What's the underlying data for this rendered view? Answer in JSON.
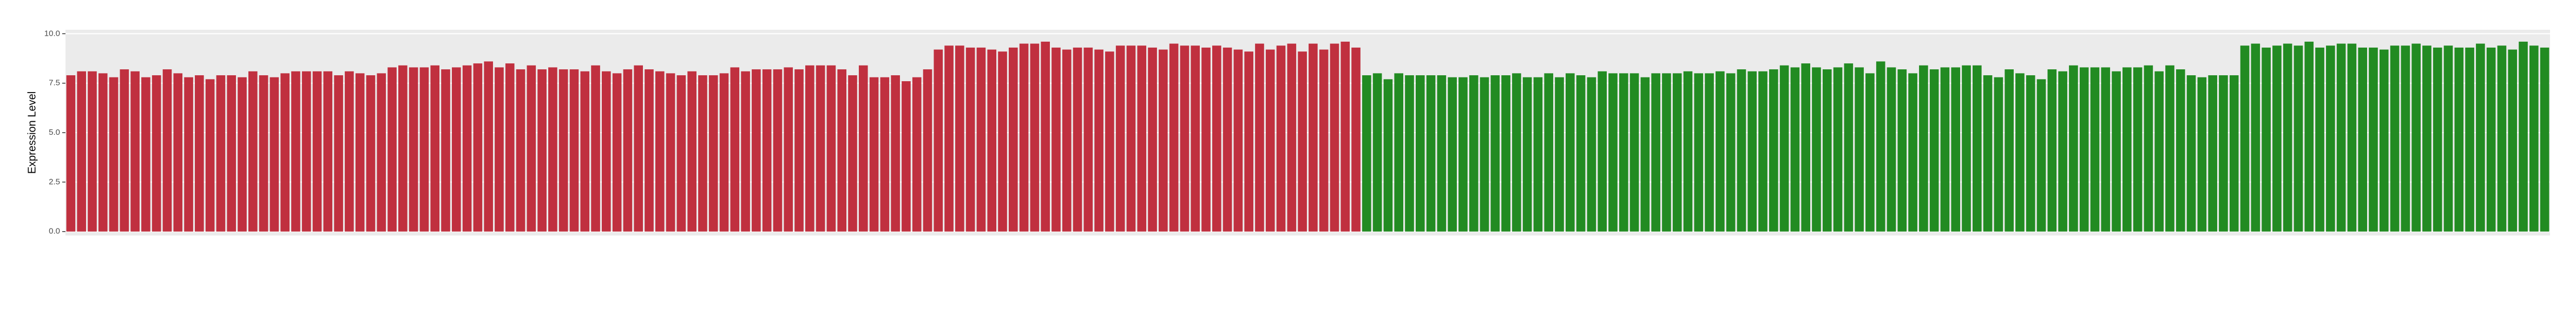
{
  "chart_data": {
    "type": "bar",
    "y_label": "Expression Level",
    "ylim": [
      -0.2,
      10.2
    ],
    "yticks": [
      {
        "value": 0,
        "label": "0.0"
      },
      {
        "value": 2.5,
        "label": "2.5"
      },
      {
        "value": 5,
        "label": "5.0"
      },
      {
        "value": 7.5,
        "label": "7.5"
      },
      {
        "value": 10,
        "label": "10.0"
      }
    ],
    "grid": true,
    "series": [
      {
        "color": "#c0303f",
        "values": [
          7.9,
          8.1,
          8.1,
          8.0,
          7.8,
          8.2,
          8.1,
          7.8,
          7.9,
          8.2,
          8.0,
          7.8,
          7.9,
          7.7,
          7.9,
          7.9,
          7.8,
          8.1,
          7.9,
          7.8,
          8.0,
          8.1,
          8.1,
          8.1,
          8.1,
          7.9,
          8.1,
          8.0,
          7.9,
          8.0,
          8.3,
          8.4,
          8.3,
          8.3,
          8.4,
          8.2,
          8.3,
          8.4,
          8.5,
          8.6,
          8.3,
          8.5,
          8.2,
          8.4,
          8.2,
          8.3,
          8.2,
          8.2,
          8.1,
          8.4,
          8.1,
          8.0,
          8.2,
          8.4,
          8.2,
          8.1,
          8.0,
          7.9,
          8.1,
          7.9,
          7.9,
          8.0,
          8.3,
          8.1,
          8.2,
          8.2,
          8.2,
          8.3,
          8.2,
          8.4,
          8.4,
          8.4,
          8.2,
          7.9,
          8.4,
          7.8,
          7.8,
          7.9,
          7.6,
          7.8,
          8.2,
          9.2,
          9.4,
          9.4,
          9.3,
          9.3,
          9.2,
          9.1,
          9.3,
          9.5,
          9.5,
          9.6,
          9.3,
          9.2,
          9.3,
          9.3,
          9.2,
          9.1,
          9.4,
          9.4,
          9.4,
          9.3,
          9.2,
          9.5,
          9.4,
          9.4,
          9.3,
          9.4,
          9.3,
          9.2,
          9.1,
          9.5,
          9.2,
          9.4,
          9.5,
          9.1,
          9.5,
          9.2,
          9.5,
          9.6,
          9.3,
          null,
          null,
          null,
          null,
          null,
          null,
          null,
          null,
          null,
          null,
          null,
          null,
          null,
          null,
          null,
          null,
          null,
          null,
          null,
          null,
          null,
          null,
          null,
          null,
          null,
          null,
          null,
          null,
          null,
          null,
          null,
          null,
          null,
          null,
          null,
          null,
          null,
          null,
          null,
          null,
          null,
          null,
          null,
          null,
          null,
          null,
          null,
          null,
          null,
          null,
          null,
          null,
          null,
          null,
          null,
          null,
          null,
          null,
          null,
          null,
          null,
          null,
          null,
          null,
          null,
          null,
          null,
          null,
          null,
          null,
          null,
          null,
          null,
          null,
          null,
          null,
          null,
          null,
          null,
          null,
          null,
          null,
          null,
          null,
          null,
          null,
          null,
          null,
          null,
          null,
          null,
          null,
          null,
          null,
          null,
          null,
          null,
          null,
          null,
          null,
          null,
          null,
          null,
          null,
          null,
          null,
          null,
          null,
          null,
          null,
          null
        ]
      },
      {
        "color": "#228b22",
        "values": [
          null,
          null,
          null,
          null,
          null,
          null,
          null,
          null,
          null,
          null,
          null,
          null,
          null,
          null,
          null,
          null,
          null,
          null,
          null,
          null,
          null,
          null,
          null,
          null,
          null,
          null,
          null,
          null,
          null,
          null,
          null,
          null,
          null,
          null,
          null,
          null,
          null,
          null,
          null,
          null,
          null,
          null,
          null,
          null,
          null,
          null,
          null,
          null,
          null,
          null,
          null,
          null,
          null,
          null,
          null,
          null,
          null,
          null,
          null,
          null,
          null,
          null,
          null,
          null,
          null,
          null,
          null,
          null,
          null,
          null,
          null,
          null,
          null,
          null,
          null,
          null,
          null,
          null,
          null,
          null,
          null,
          null,
          null,
          null,
          null,
          null,
          null,
          null,
          null,
          null,
          null,
          null,
          null,
          null,
          null,
          null,
          null,
          null,
          null,
          null,
          null,
          null,
          null,
          null,
          null,
          null,
          null,
          null,
          null,
          null,
          null,
          null,
          null,
          null,
          null,
          null,
          null,
          null,
          null,
          null,
          null,
          7.9,
          8.0,
          7.7,
          8.0,
          7.9,
          7.9,
          7.9,
          7.9,
          7.8,
          7.8,
          7.9,
          7.8,
          7.9,
          7.9,
          8.0,
          7.8,
          7.8,
          8.0,
          7.8,
          8.0,
          7.9,
          7.8,
          8.1,
          8.0,
          8.0,
          8.0,
          7.8,
          8.0,
          8.0,
          8.0,
          8.1,
          8.0,
          8.0,
          8.1,
          8.0,
          8.2,
          8.1,
          8.1,
          8.2,
          8.4,
          8.3,
          8.5,
          8.3,
          8.2,
          8.3,
          8.5,
          8.3,
          8.0,
          8.6,
          8.3,
          8.2,
          8.0,
          8.4,
          8.2,
          8.3,
          8.3,
          8.4,
          8.4,
          7.9,
          7.8,
          8.2,
          8.0,
          7.9,
          7.7,
          8.2,
          8.1,
          8.4,
          8.3,
          8.3,
          8.3,
          8.1,
          8.3,
          8.3,
          8.4,
          8.1,
          8.4,
          8.2,
          7.9,
          7.8,
          7.9,
          7.9,
          7.9,
          9.4,
          9.5,
          9.3,
          9.4,
          9.5,
          9.4,
          9.6,
          9.3,
          9.4,
          9.5,
          9.5,
          9.3,
          9.3,
          9.2,
          9.4,
          9.4,
          9.5,
          9.4,
          9.3,
          9.4,
          9.3,
          9.3,
          9.5,
          9.3,
          9.4,
          9.2,
          9.6,
          9.4,
          9.3
        ]
      }
    ]
  }
}
